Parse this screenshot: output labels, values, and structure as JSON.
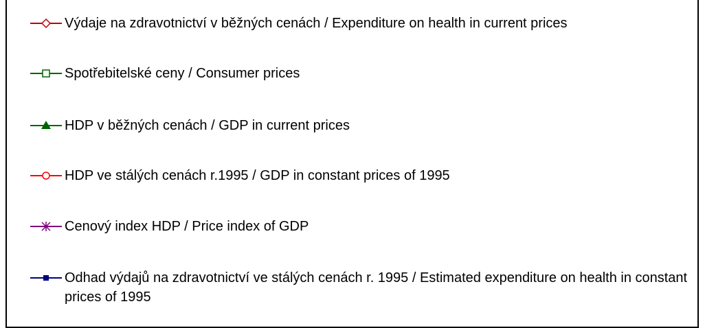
{
  "legend": {
    "items": [
      {
        "label": "Výdaje na zdravotnictví v běžných cenách / Expenditure on health in current prices",
        "color": "#c00000",
        "marker": "diamond-open"
      },
      {
        "label": "Spotřebitelské ceny / Consumer prices",
        "color": "#006400",
        "marker": "square-open"
      },
      {
        "label": "HDP v běžných cenách / GDP in current prices",
        "color": "#006400",
        "marker": "triangle-filled"
      },
      {
        "label": "HDP ve stálých cenách r.1995 / GDP in constant prices of 1995",
        "color": "#ff0000",
        "marker": "circle-open"
      },
      {
        "label": "Cenový index HDP / Price index of GDP",
        "color": "#800080",
        "marker": "asterisk"
      },
      {
        "label": "Odhad výdajů na zdravotnictví ve stálých cenách r. 1995 / Estimated expenditure on health in constant prices of 1995",
        "color": "#000080",
        "marker": "square-filled"
      }
    ]
  }
}
